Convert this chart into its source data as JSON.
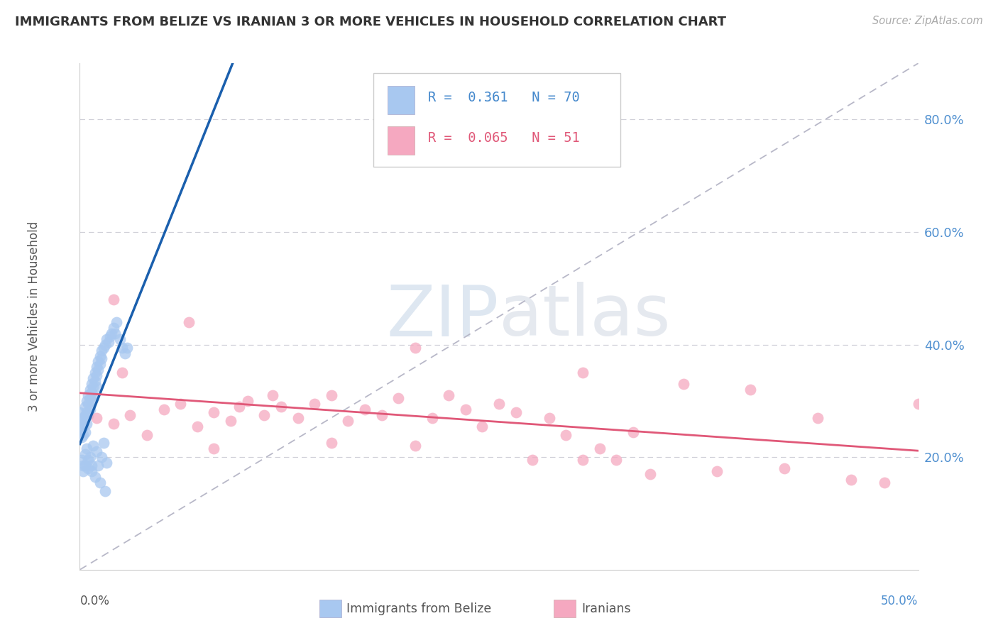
{
  "title": "IMMIGRANTS FROM BELIZE VS IRANIAN 3 OR MORE VEHICLES IN HOUSEHOLD CORRELATION CHART",
  "source": "Source: ZipAtlas.com",
  "ylabel": "3 or more Vehicles in Household",
  "yticks_labels": [
    "20.0%",
    "40.0%",
    "60.0%",
    "80.0%"
  ],
  "ytick_vals": [
    0.2,
    0.4,
    0.6,
    0.8
  ],
  "xlim": [
    0.0,
    0.5
  ],
  "ylim": [
    0.0,
    0.9
  ],
  "legend_r_belize": "0.361",
  "legend_n_belize": "70",
  "legend_r_iranian": "0.065",
  "legend_n_iranian": "51",
  "watermark_zip": "ZIP",
  "watermark_atlas": "atlas",
  "belize_color": "#a8c8f0",
  "iranian_color": "#f5a8c0",
  "belize_line_color": "#1a5fad",
  "iranian_line_color": "#e05878",
  "belize_scatter_x": [
    0.0,
    0.001,
    0.001,
    0.001,
    0.002,
    0.002,
    0.002,
    0.002,
    0.003,
    0.003,
    0.003,
    0.004,
    0.004,
    0.004,
    0.005,
    0.005,
    0.005,
    0.006,
    0.006,
    0.006,
    0.007,
    0.007,
    0.007,
    0.008,
    0.008,
    0.008,
    0.009,
    0.009,
    0.01,
    0.01,
    0.01,
    0.011,
    0.011,
    0.012,
    0.012,
    0.013,
    0.013,
    0.014,
    0.015,
    0.016,
    0.017,
    0.018,
    0.019,
    0.02,
    0.021,
    0.022,
    0.024,
    0.025,
    0.027,
    0.028,
    0.001,
    0.002,
    0.002,
    0.003,
    0.003,
    0.004,
    0.005,
    0.005,
    0.006,
    0.007,
    0.007,
    0.008,
    0.009,
    0.01,
    0.011,
    0.012,
    0.013,
    0.014,
    0.015,
    0.016
  ],
  "belize_scatter_y": [
    0.28,
    0.265,
    0.25,
    0.235,
    0.27,
    0.255,
    0.24,
    0.26,
    0.275,
    0.29,
    0.245,
    0.3,
    0.28,
    0.26,
    0.31,
    0.295,
    0.275,
    0.32,
    0.305,
    0.285,
    0.33,
    0.315,
    0.3,
    0.34,
    0.325,
    0.31,
    0.35,
    0.335,
    0.36,
    0.345,
    0.325,
    0.37,
    0.355,
    0.38,
    0.365,
    0.39,
    0.375,
    0.395,
    0.4,
    0.41,
    0.405,
    0.415,
    0.42,
    0.43,
    0.42,
    0.44,
    0.41,
    0.395,
    0.385,
    0.395,
    0.195,
    0.185,
    0.175,
    0.205,
    0.185,
    0.215,
    0.195,
    0.18,
    0.2,
    0.185,
    0.175,
    0.22,
    0.165,
    0.21,
    0.185,
    0.155,
    0.2,
    0.225,
    0.14,
    0.19
  ],
  "iranian_scatter_x": [
    0.01,
    0.02,
    0.025,
    0.03,
    0.04,
    0.05,
    0.06,
    0.065,
    0.07,
    0.08,
    0.09,
    0.095,
    0.1,
    0.11,
    0.115,
    0.12,
    0.13,
    0.14,
    0.15,
    0.16,
    0.17,
    0.18,
    0.19,
    0.2,
    0.21,
    0.22,
    0.23,
    0.24,
    0.25,
    0.26,
    0.27,
    0.28,
    0.29,
    0.3,
    0.31,
    0.32,
    0.33,
    0.34,
    0.36,
    0.38,
    0.4,
    0.42,
    0.44,
    0.46,
    0.48,
    0.5,
    0.08,
    0.15,
    0.2,
    0.3,
    0.02
  ],
  "iranian_scatter_y": [
    0.27,
    0.26,
    0.35,
    0.275,
    0.24,
    0.285,
    0.295,
    0.44,
    0.255,
    0.28,
    0.265,
    0.29,
    0.3,
    0.275,
    0.31,
    0.29,
    0.27,
    0.295,
    0.31,
    0.265,
    0.285,
    0.275,
    0.305,
    0.395,
    0.27,
    0.31,
    0.285,
    0.255,
    0.295,
    0.28,
    0.195,
    0.27,
    0.24,
    0.35,
    0.215,
    0.195,
    0.245,
    0.17,
    0.33,
    0.175,
    0.32,
    0.18,
    0.27,
    0.16,
    0.155,
    0.295,
    0.215,
    0.225,
    0.22,
    0.195,
    0.48
  ]
}
